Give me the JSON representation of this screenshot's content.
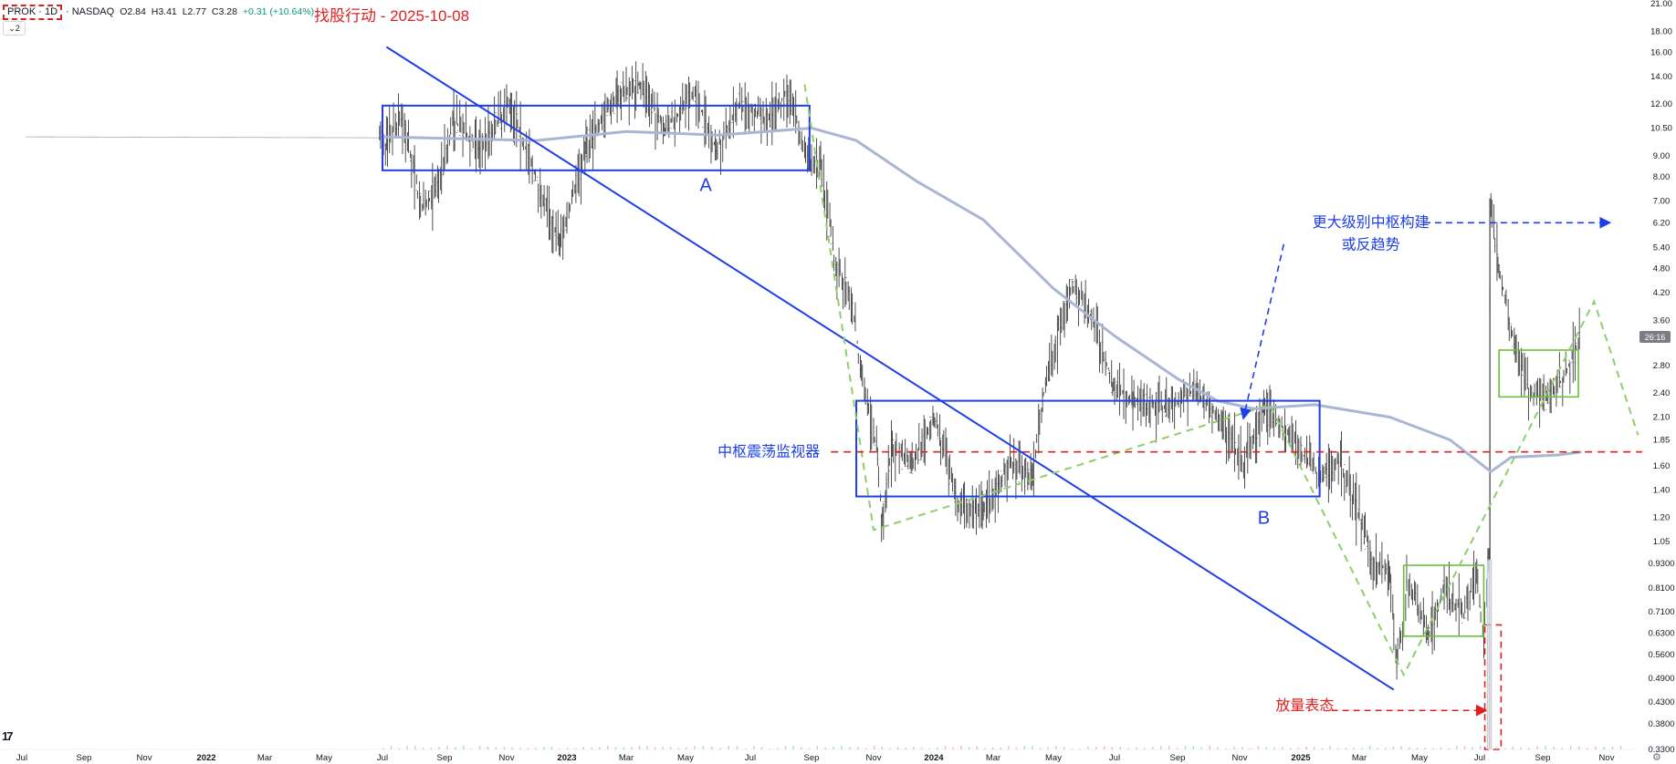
{
  "header": {
    "symbol": "PROK · 1D",
    "exchange": "· NASDAQ",
    "open_label": "O",
    "open": "2.84",
    "high_label": "H",
    "high": "3.41",
    "low_label": "L",
    "low": "2.77",
    "close_label": "C",
    "close": "3.28",
    "change": "+0.31 (+10.64%)",
    "headline": "找股行动 - 2025-10-08",
    "collapse_count": "2",
    "last_price_badge": "26:16"
  },
  "colors": {
    "accent_red": "#e02020",
    "annotation_blue": "#1e3ee8",
    "green_dash": "#8fce6a",
    "ma_line": "#a9b6d3",
    "candle": "#3c3c3c"
  },
  "icons": [
    "tradingview-logo-icon",
    "settings-gear-icon",
    "chevron-down-icon"
  ],
  "chart_data": {
    "type": "line",
    "scale": "log",
    "ylim": [
      0.33,
      21.0
    ],
    "y_ticks": [
      "21.00",
      "18.00",
      "16.00",
      "14.00",
      "12.00",
      "10.50",
      "9.00",
      "8.00",
      "7.00",
      "6.20",
      "5.40",
      "4.80",
      "4.20",
      "3.60",
      "2.80",
      "2.40",
      "2.10",
      "1.85",
      "1.60",
      "1.40",
      "1.20",
      "1.05",
      "0.9300",
      "0.8100",
      "0.7100",
      "0.6300",
      "0.5600",
      "0.4900",
      "0.4300",
      "0.3800",
      "0.3300"
    ],
    "x_ticks": [
      "Jul",
      "Sep",
      "Nov",
      "2022",
      "Mar",
      "May",
      "Jul",
      "Sep",
      "Nov",
      "2023",
      "Mar",
      "May",
      "Jul",
      "Sep",
      "Nov",
      "2024",
      "Mar",
      "May",
      "Jul",
      "Sep",
      "Nov",
      "2025",
      "Mar",
      "May",
      "Jul",
      "Sep",
      "Nov"
    ],
    "x_tick_dates": [
      "2021-07-01",
      "2021-09-01",
      "2021-11-01",
      "2022-01-01",
      "2022-03-01",
      "2022-05-01",
      "2022-07-01",
      "2022-09-01",
      "2022-11-01",
      "2023-01-01",
      "2023-03-01",
      "2023-05-01",
      "2023-07-01",
      "2023-09-01",
      "2023-11-01",
      "2024-01-01",
      "2024-03-01",
      "2024-05-01",
      "2024-07-01",
      "2024-09-01",
      "2024-11-01",
      "2025-01-01",
      "2025-03-01",
      "2025-05-01",
      "2025-07-01",
      "2025-09-01",
      "2025-11-01"
    ],
    "bold_ticks": [
      "2022",
      "2023",
      "2024",
      "2025"
    ],
    "price_path": [
      {
        "date": "2021-07-05",
        "close": 10.0
      },
      {
        "date": "2022-04-01",
        "close": 9.9
      },
      {
        "date": "2022-06-28",
        "close": 10.0
      },
      {
        "date": "2022-07-05",
        "close": 9.5
      },
      {
        "date": "2022-07-20",
        "close": 11.3
      },
      {
        "date": "2022-08-10",
        "close": 6.6
      },
      {
        "date": "2022-08-25",
        "close": 7.6
      },
      {
        "date": "2022-09-10",
        "close": 11.0
      },
      {
        "date": "2022-10-05",
        "close": 9.3
      },
      {
        "date": "2022-11-05",
        "close": 12.2
      },
      {
        "date": "2022-11-20",
        "close": 9.4
      },
      {
        "date": "2022-12-25",
        "close": 5.5
      },
      {
        "date": "2023-01-20",
        "close": 9.5
      },
      {
        "date": "2023-02-20",
        "close": 12.6
      },
      {
        "date": "2023-03-15",
        "close": 13.4
      },
      {
        "date": "2023-04-10",
        "close": 10.4
      },
      {
        "date": "2023-05-10",
        "close": 12.6
      },
      {
        "date": "2023-05-30",
        "close": 9.3
      },
      {
        "date": "2023-06-20",
        "close": 12.0
      },
      {
        "date": "2023-07-20",
        "close": 11.0
      },
      {
        "date": "2023-08-10",
        "close": 13.0
      },
      {
        "date": "2023-08-25",
        "close": 9.0
      },
      {
        "date": "2023-09-10",
        "close": 8.4
      },
      {
        "date": "2023-09-25",
        "close": 4.9
      },
      {
        "date": "2023-10-10",
        "close": 4.1
      },
      {
        "date": "2023-10-20",
        "close": 2.7
      },
      {
        "date": "2023-11-05",
        "close": 1.7
      },
      {
        "date": "2023-11-10",
        "close": 1.15
      },
      {
        "date": "2023-11-20",
        "close": 1.8
      },
      {
        "date": "2023-12-10",
        "close": 1.6
      },
      {
        "date": "2024-01-01",
        "close": 2.1
      },
      {
        "date": "2024-01-25",
        "close": 1.3
      },
      {
        "date": "2024-02-20",
        "close": 1.22
      },
      {
        "date": "2024-03-15",
        "close": 1.6
      },
      {
        "date": "2024-04-10",
        "close": 1.5
      },
      {
        "date": "2024-04-20",
        "close": 2.3
      },
      {
        "date": "2024-05-05",
        "close": 3.3
      },
      {
        "date": "2024-05-20",
        "close": 4.4
      },
      {
        "date": "2024-06-10",
        "close": 3.6
      },
      {
        "date": "2024-06-30",
        "close": 2.5
      },
      {
        "date": "2024-07-20",
        "close": 2.3
      },
      {
        "date": "2024-08-20",
        "close": 2.2
      },
      {
        "date": "2024-09-20",
        "close": 2.45
      },
      {
        "date": "2024-10-15",
        "close": 2.0
      },
      {
        "date": "2024-11-05",
        "close": 1.6
      },
      {
        "date": "2024-11-25",
        "close": 2.2
      },
      {
        "date": "2024-12-20",
        "close": 1.9
      },
      {
        "date": "2025-01-20",
        "close": 1.5
      },
      {
        "date": "2025-02-10",
        "close": 1.65
      },
      {
        "date": "2025-02-25",
        "close": 1.3
      },
      {
        "date": "2025-03-15",
        "close": 0.95
      },
      {
        "date": "2025-04-01",
        "close": 0.9
      },
      {
        "date": "2025-04-08",
        "close": 0.52
      },
      {
        "date": "2025-04-20",
        "close": 0.85
      },
      {
        "date": "2025-05-10",
        "close": 0.62
      },
      {
        "date": "2025-05-25",
        "close": 0.8
      },
      {
        "date": "2025-06-15",
        "close": 0.7
      },
      {
        "date": "2025-06-28",
        "close": 0.9
      },
      {
        "date": "2025-07-05",
        "close": 0.62
      },
      {
        "date": "2025-07-10",
        "close": 1.0
      },
      {
        "date": "2025-07-12",
        "close": 6.6
      },
      {
        "date": "2025-07-20",
        "close": 4.9
      },
      {
        "date": "2025-08-05",
        "close": 3.1
      },
      {
        "date": "2025-08-20",
        "close": 2.4
      },
      {
        "date": "2025-09-05",
        "close": 2.3
      },
      {
        "date": "2025-09-20",
        "close": 2.6
      },
      {
        "date": "2025-10-08",
        "close": 3.28
      }
    ],
    "ma_path": [
      {
        "date": "2022-07-01",
        "value": 10.0
      },
      {
        "date": "2022-12-01",
        "value": 9.8
      },
      {
        "date": "2023-03-01",
        "value": 10.3
      },
      {
        "date": "2023-06-01",
        "value": 10.1
      },
      {
        "date": "2023-09-01",
        "value": 10.5
      },
      {
        "date": "2023-10-15",
        "value": 9.8
      },
      {
        "date": "2023-12-15",
        "value": 7.8
      },
      {
        "date": "2024-02-20",
        "value": 6.3
      },
      {
        "date": "2024-05-01",
        "value": 4.3
      },
      {
        "date": "2024-07-01",
        "value": 3.3
      },
      {
        "date": "2024-09-01",
        "value": 2.6
      },
      {
        "date": "2024-10-10",
        "value": 2.3
      },
      {
        "date": "2024-11-15",
        "value": 2.2
      },
      {
        "date": "2025-01-15",
        "value": 2.25
      },
      {
        "date": "2025-04-01",
        "value": 2.1
      },
      {
        "date": "2025-06-01",
        "value": 1.85
      },
      {
        "date": "2025-07-12",
        "value": 1.55
      },
      {
        "date": "2025-08-01",
        "value": 1.68
      },
      {
        "date": "2025-09-15",
        "value": 1.7
      },
      {
        "date": "2025-10-08",
        "value": 1.73
      }
    ],
    "boxes": [
      {
        "id": "box-a",
        "start": "2022-07-01",
        "end": "2023-08-30",
        "low": 8.3,
        "high": 11.9,
        "color": "blue",
        "label": "A"
      },
      {
        "id": "box-b",
        "start": "2023-10-15",
        "end": "2025-01-20",
        "low": 1.35,
        "high": 2.3,
        "color": "blue",
        "label": "B"
      },
      {
        "id": "box-g1",
        "start": "2025-04-15",
        "end": "2025-07-05",
        "low": 0.62,
        "high": 0.92,
        "color": "green",
        "label": ""
      },
      {
        "id": "box-g2",
        "start": "2025-07-20",
        "end": "2025-10-05",
        "low": 2.35,
        "high": 3.05,
        "color": "green",
        "label": ""
      }
    ],
    "trendline": {
      "start": {
        "date": "2022-07-05",
        "price": 16.5
      },
      "end": {
        "date": "2025-04-05",
        "price": 0.46
      }
    },
    "green_dashed": [
      {
        "date": "2023-08-25",
        "price": 13.4
      },
      {
        "date": "2023-11-01",
        "price": 1.12
      },
      {
        "date": "2024-12-01",
        "price": 2.25
      },
      {
        "date": "2025-04-15",
        "price": 0.5
      },
      {
        "date": "2025-10-20",
        "price": 4.0
      },
      {
        "date": "2025-12-01",
        "price": 1.9
      }
    ],
    "red_level": {
      "price": 1.73,
      "start": "2023-09-20",
      "end": "2025-12-05",
      "label": "中枢震荡监视器"
    },
    "annotations": {
      "label_a": "A",
      "label_b": "B",
      "bigger_line1": "更大级别中枢构建",
      "bigger_line2": "或反趋势",
      "volume_note": "放量表态"
    },
    "volume_spike": {
      "date": "2025-07-08",
      "label": "放量表态"
    }
  }
}
